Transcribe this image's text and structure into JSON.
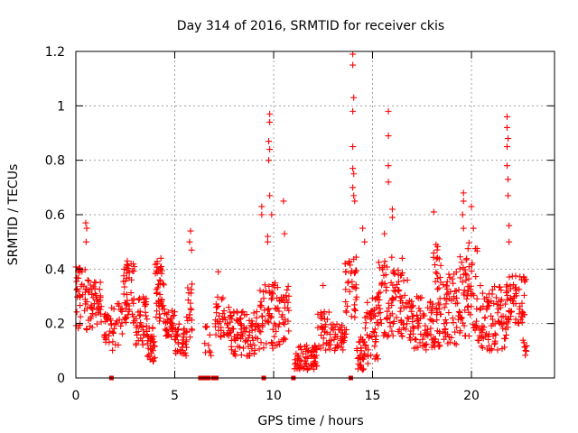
{
  "chart_data": {
    "type": "scatter",
    "title": "Day 314 of 2016, SRMTID for receiver ckis",
    "xlabel": "GPS time / hours",
    "ylabel": "SRMTID / TECUs",
    "xlim": [
      0,
      24.2
    ],
    "ylim": [
      0,
      1.2
    ],
    "xticks": [
      0,
      5,
      10,
      15,
      20
    ],
    "xtick_labels": [
      "0",
      "5",
      "10",
      "15",
      "20"
    ],
    "yticks": [
      0,
      0.2,
      0.4,
      0.6,
      0.8,
      1.0,
      1.2
    ],
    "ytick_labels": [
      "0",
      "0.2",
      "0.4",
      "0.6",
      "0.8",
      "1",
      "1.2"
    ],
    "grid": true,
    "marker": "plus",
    "color": "#ff0000",
    "series": [
      {
        "name": "SRMTID",
        "clusters": [
          {
            "x_start": 0.0,
            "x_end": 0.6,
            "min": 0.17,
            "max": 0.42,
            "count": 40,
            "peaks": [
              [
                0.5,
                0.57
              ],
              [
                0.55,
                0.55
              ],
              [
                0.52,
                0.5
              ]
            ]
          },
          {
            "x_start": 0.6,
            "x_end": 1.3,
            "min": 0.18,
            "max": 0.36,
            "count": 45,
            "peaks": [
              [
                1.0,
                0.35
              ]
            ]
          },
          {
            "x_start": 1.3,
            "x_end": 1.8,
            "min": 0.13,
            "max": 0.24,
            "count": 20
          },
          {
            "x_start": 1.8,
            "x_end": 2.4,
            "min": 0.1,
            "max": 0.28,
            "count": 25
          },
          {
            "x_start": 2.4,
            "x_end": 3.0,
            "min": 0.2,
            "max": 0.42,
            "count": 45,
            "peaks": [
              [
                2.6,
                0.43
              ]
            ]
          },
          {
            "x_start": 3.0,
            "x_end": 3.6,
            "min": 0.12,
            "max": 0.3,
            "count": 40
          },
          {
            "x_start": 3.6,
            "x_end": 4.0,
            "min": 0.06,
            "max": 0.2,
            "count": 35
          },
          {
            "x_start": 4.0,
            "x_end": 4.5,
            "min": 0.2,
            "max": 0.43,
            "count": 45,
            "peaks": [
              [
                4.3,
                0.44
              ]
            ]
          },
          {
            "x_start": 4.5,
            "x_end": 5.0,
            "min": 0.15,
            "max": 0.25,
            "count": 30
          },
          {
            "x_start": 5.0,
            "x_end": 5.6,
            "min": 0.08,
            "max": 0.2,
            "count": 35
          },
          {
            "x_start": 5.6,
            "x_end": 5.9,
            "min": 0.15,
            "max": 0.35,
            "count": 20,
            "peaks": [
              [
                5.8,
                0.54
              ],
              [
                5.75,
                0.5
              ],
              [
                5.85,
                0.47
              ]
            ]
          },
          {
            "x_start": 6.5,
            "x_end": 7.0,
            "min": 0.08,
            "max": 0.2,
            "count": 10
          },
          {
            "x_start": 7.0,
            "x_end": 7.8,
            "min": 0.15,
            "max": 0.3,
            "count": 40,
            "peaks": [
              [
                7.2,
                0.39
              ]
            ]
          },
          {
            "x_start": 7.8,
            "x_end": 8.5,
            "min": 0.08,
            "max": 0.25,
            "count": 45
          },
          {
            "x_start": 8.5,
            "x_end": 9.3,
            "min": 0.08,
            "max": 0.25,
            "count": 45
          },
          {
            "x_start": 9.3,
            "x_end": 10.2,
            "min": 0.1,
            "max": 0.35,
            "count": 55,
            "peaks": [
              [
                9.4,
                0.63
              ],
              [
                9.4,
                0.6
              ],
              [
                9.8,
                0.97
              ],
              [
                9.8,
                0.94
              ],
              [
                9.75,
                0.87
              ],
              [
                9.8,
                0.84
              ],
              [
                9.75,
                0.8
              ],
              [
                9.8,
                0.67
              ],
              [
                9.9,
                0.6
              ],
              [
                9.7,
                0.52
              ],
              [
                9.7,
                0.5
              ]
            ]
          },
          {
            "x_start": 10.2,
            "x_end": 10.8,
            "min": 0.12,
            "max": 0.35,
            "count": 35,
            "peaks": [
              [
                10.5,
                0.65
              ],
              [
                10.55,
                0.53
              ]
            ]
          },
          {
            "x_start": 11.0,
            "x_end": 12.2,
            "min": 0.03,
            "max": 0.12,
            "count": 70
          },
          {
            "x_start": 12.2,
            "x_end": 12.8,
            "min": 0.1,
            "max": 0.25,
            "count": 30,
            "peaks": [
              [
                12.5,
                0.34
              ]
            ]
          },
          {
            "x_start": 12.8,
            "x_end": 13.6,
            "min": 0.1,
            "max": 0.2,
            "count": 40
          },
          {
            "x_start": 13.6,
            "x_end": 14.2,
            "min": 0.15,
            "max": 0.45,
            "count": 40,
            "peaks": [
              [
                14.0,
                1.19
              ],
              [
                14.0,
                1.15
              ],
              [
                14.05,
                1.03
              ],
              [
                14.0,
                0.98
              ],
              [
                14.0,
                0.85
              ],
              [
                14.0,
                0.77
              ],
              [
                14.05,
                0.75
              ],
              [
                14.0,
                0.7
              ],
              [
                14.05,
                0.67
              ],
              [
                14.1,
                0.65
              ]
            ]
          },
          {
            "x_start": 14.2,
            "x_end": 14.6,
            "min": 0.03,
            "max": 0.15,
            "count": 30,
            "peaks": [
              [
                14.5,
                0.55
              ],
              [
                14.6,
                0.5
              ]
            ]
          },
          {
            "x_start": 14.6,
            "x_end": 15.3,
            "min": 0.05,
            "max": 0.3,
            "count": 50
          },
          {
            "x_start": 15.3,
            "x_end": 16.1,
            "min": 0.15,
            "max": 0.45,
            "count": 55,
            "peaks": [
              [
                15.8,
                0.98
              ],
              [
                15.8,
                0.89
              ],
              [
                15.8,
                0.78
              ],
              [
                15.8,
                0.72
              ],
              [
                16.0,
                0.62
              ],
              [
                16.0,
                0.59
              ],
              [
                15.6,
                0.53
              ]
            ]
          },
          {
            "x_start": 16.1,
            "x_end": 16.8,
            "min": 0.15,
            "max": 0.4,
            "count": 40,
            "peaks": [
              [
                16.5,
                0.44
              ]
            ]
          },
          {
            "x_start": 16.8,
            "x_end": 18.0,
            "min": 0.1,
            "max": 0.3,
            "count": 70
          },
          {
            "x_start": 18.0,
            "x_end": 18.6,
            "min": 0.1,
            "max": 0.5,
            "count": 50,
            "peaks": [
              [
                18.1,
                0.61
              ]
            ]
          },
          {
            "x_start": 18.6,
            "x_end": 19.4,
            "min": 0.12,
            "max": 0.4,
            "count": 50
          },
          {
            "x_start": 19.4,
            "x_end": 19.8,
            "min": 0.15,
            "max": 0.45,
            "count": 30,
            "peaks": [
              [
                19.6,
                0.68
              ],
              [
                19.6,
                0.65
              ],
              [
                19.55,
                0.6
              ],
              [
                19.6,
                0.55
              ]
            ]
          },
          {
            "x_start": 19.8,
            "x_end": 20.3,
            "min": 0.15,
            "max": 0.5,
            "count": 35,
            "peaks": [
              [
                20.0,
                0.63
              ],
              [
                20.1,
                0.55
              ]
            ]
          },
          {
            "x_start": 20.3,
            "x_end": 21.3,
            "min": 0.1,
            "max": 0.35,
            "count": 60
          },
          {
            "x_start": 21.3,
            "x_end": 21.9,
            "min": 0.1,
            "max": 0.35,
            "count": 40,
            "peaks": [
              [
                21.8,
                0.96
              ],
              [
                21.8,
                0.92
              ],
              [
                21.85,
                0.88
              ],
              [
                21.8,
                0.85
              ],
              [
                21.8,
                0.78
              ],
              [
                21.85,
                0.73
              ],
              [
                21.85,
                0.67
              ],
              [
                21.9,
                0.56
              ],
              [
                21.9,
                0.5
              ]
            ]
          },
          {
            "x_start": 21.9,
            "x_end": 22.8,
            "min": 0.2,
            "max": 0.38,
            "count": 50
          },
          {
            "x_start": 22.6,
            "x_end": 22.8,
            "min": 0.08,
            "max": 0.18,
            "count": 8
          }
        ]
      },
      {
        "name": "gap markers",
        "x": [
          1.8,
          6.3,
          6.5,
          6.7,
          6.95,
          7.1,
          9.5,
          11.0,
          13.9
        ],
        "y": [
          0,
          0,
          0,
          0,
          0,
          0,
          0,
          0,
          0
        ]
      }
    ]
  }
}
